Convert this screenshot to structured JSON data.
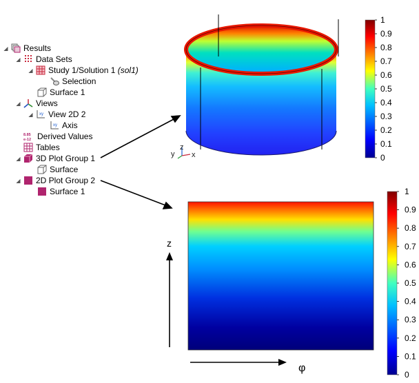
{
  "tree": {
    "items": [
      {
        "label": "Results",
        "toggle": "◢",
        "icon": "results-icon"
      },
      {
        "label": "Data Sets",
        "toggle": "◢",
        "icon": "data-sets-icon"
      },
      {
        "label": "Study 1/Solution 1 ",
        "italic": "(sol1)",
        "toggle": "◢",
        "icon": "solution-icon"
      },
      {
        "label": "Selection",
        "icon": "selection-icon"
      },
      {
        "label": "Surface 1",
        "icon": "surface-dataset-icon"
      },
      {
        "label": "Views",
        "toggle": "◢",
        "icon": "views-icon"
      },
      {
        "label": "View 2D 2",
        "toggle": "◢",
        "icon": "view-2d-icon"
      },
      {
        "label": "Axis",
        "icon": "axis-icon"
      },
      {
        "label": "Derived Values",
        "icon": "derived-values-icon",
        "icon_text": [
          "8.85",
          "e-12"
        ]
      },
      {
        "label": "Tables",
        "icon": "tables-icon"
      },
      {
        "label": "3D Plot Group 1",
        "toggle": "◢",
        "icon": "plot-3d-icon"
      },
      {
        "label": "Surface",
        "icon": "surface-icon"
      },
      {
        "label": "2D Plot Group 2",
        "toggle": "◢",
        "icon": "plot-2d-icon"
      },
      {
        "label": "Surface 1",
        "icon": "surface-2d-icon"
      }
    ]
  },
  "plot3d": {
    "triad": {
      "x": "x",
      "y": "y",
      "z": "z"
    }
  },
  "colorbar_top": {
    "ticks": [
      "1",
      "0.9",
      "0.8",
      "0.7",
      "0.6",
      "0.5",
      "0.4",
      "0.3",
      "0.2",
      "0.1",
      "0"
    ]
  },
  "plot2d": {
    "z_label": "z",
    "phi_label": "φ"
  },
  "colorbar_bottom": {
    "ticks": [
      "1",
      "0.9",
      "0.8",
      "0.7",
      "0.6",
      "0.5",
      "0.4",
      "0.3",
      "0.2",
      "0.1",
      "0"
    ]
  },
  "colors": {
    "accent_pink": "#b0246e",
    "grid_red": "#c8283c"
  }
}
